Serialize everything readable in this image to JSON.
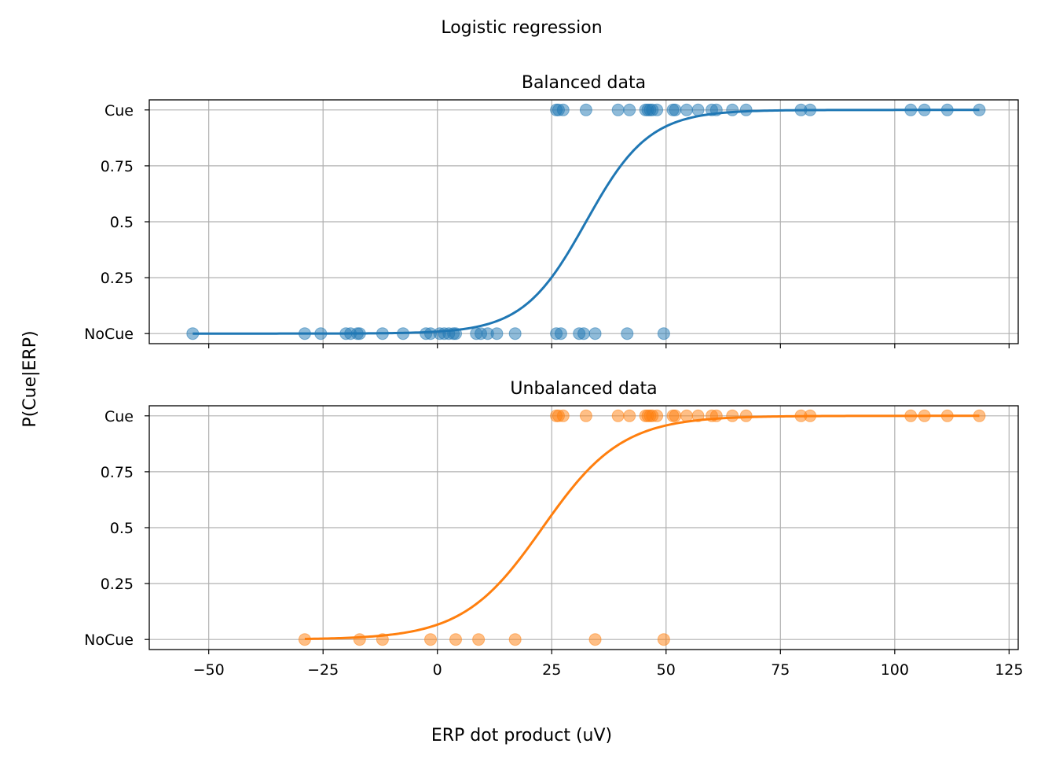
{
  "figure": {
    "suptitle": "Logistic regression",
    "shared_xlabel": "ERP dot product (uV)",
    "shared_ylabel": "P(Cue|ERP)"
  },
  "chart_data": [
    {
      "type": "scatter",
      "title": "Balanced data",
      "xlim": [
        -63,
        127
      ],
      "ylim": [
        -0.045,
        1.045
      ],
      "xticks": [
        -50,
        -25,
        0,
        25,
        50,
        75,
        100,
        125
      ],
      "xtick_labels_shown": false,
      "yticks": [
        0,
        0.25,
        0.5,
        0.75,
        1
      ],
      "ytick_labels": [
        "NoCue",
        "0.25",
        "0.5",
        "0.75",
        "Cue"
      ],
      "grid": true,
      "color": "#1f77b4",
      "series": [
        {
          "kind": "points",
          "y": 1,
          "x": [
            26,
            26.5,
            27.5,
            32.5,
            39.5,
            42,
            45.5,
            46,
            46.5,
            47,
            48,
            51.5,
            52,
            54.5,
            57,
            60,
            61,
            64.5,
            67.5,
            79.5,
            81.5,
            103.5,
            106.5,
            111.5,
            118.5
          ]
        },
        {
          "kind": "points",
          "y": 0,
          "x": [
            -53.5,
            -29,
            -25.5,
            -20,
            -19,
            -17.5,
            -17,
            -12,
            -7.5,
            -2.5,
            -1.5,
            0.5,
            1.5,
            2.5,
            3.5,
            4,
            8.5,
            9.5,
            11,
            13,
            17,
            26,
            27,
            31,
            32,
            34.5,
            41.5,
            49.5
          ]
        },
        {
          "kind": "curve",
          "model": "logistic",
          "midpoint": 32.5,
          "slope": 0.145,
          "x_range": [
            -53.5,
            118.5
          ]
        }
      ]
    },
    {
      "type": "scatter",
      "title": "Unbalanced data",
      "xlim": [
        -63,
        127
      ],
      "ylim": [
        -0.045,
        1.045
      ],
      "xticks": [
        -50,
        -25,
        0,
        25,
        50,
        75,
        100,
        125
      ],
      "xtick_labels": [
        "−50",
        "−25",
        "0",
        "25",
        "50",
        "75",
        "100",
        "125"
      ],
      "yticks": [
        0,
        0.25,
        0.5,
        0.75,
        1
      ],
      "ytick_labels": [
        "NoCue",
        "0.25",
        "0.5",
        "0.75",
        "Cue"
      ],
      "grid": true,
      "color": "#ff7f0e",
      "series": [
        {
          "kind": "points",
          "y": 1,
          "x": [
            26,
            26.5,
            27.5,
            32.5,
            39.5,
            42,
            45.5,
            46,
            46.5,
            47,
            48,
            51.5,
            52,
            54.5,
            57,
            60,
            61,
            64.5,
            67.5,
            79.5,
            81.5,
            103.5,
            106.5,
            111.5,
            118.5
          ]
        },
        {
          "kind": "points",
          "y": 0,
          "x": [
            -29,
            -17,
            -12,
            -1.5,
            4,
            9,
            17,
            34.5,
            49.5
          ]
        },
        {
          "kind": "curve",
          "model": "logistic",
          "midpoint": 23,
          "slope": 0.115,
          "x_range": [
            -29,
            118.5
          ]
        }
      ]
    }
  ]
}
